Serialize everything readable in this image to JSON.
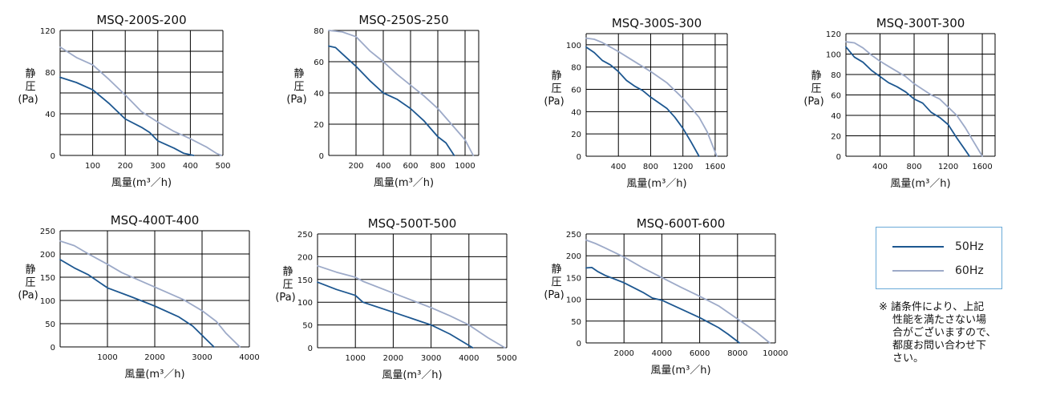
{
  "colors": {
    "hz50": "#1d5790",
    "hz60": "#9daac8",
    "grid": "#000000",
    "legend_border": "#6aaad8"
  },
  "legend": [
    {
      "label": "50Hz",
      "color": "#1d5790"
    },
    {
      "label": "60Hz",
      "color": "#9daac8"
    }
  ],
  "note_lines": [
    "※ 諸条件により、上記",
    "性能を満たさない場",
    "合がございますので、",
    "都度お問い合わせ下",
    "さい。"
  ],
  "chart_data": [
    {
      "type": "line",
      "title": "MSQ-200S-200",
      "ylabel": [
        "静",
        "圧",
        "(Pa)"
      ],
      "xlabel": "風量(m³／h)",
      "xlim": [
        0,
        500
      ],
      "ylim": [
        0,
        120
      ],
      "x_grid": [
        0,
        100,
        200,
        300,
        400,
        500
      ],
      "x_ticks": [
        100,
        200,
        300,
        400,
        500
      ],
      "y_grid": [
        0,
        20,
        40,
        60,
        80,
        100,
        120
      ],
      "y_ticks": [
        0,
        40,
        80,
        120
      ],
      "series": [
        {
          "name": "50Hz",
          "points": [
            [
              0,
              75
            ],
            [
              50,
              70
            ],
            [
              100,
              63
            ],
            [
              150,
              50
            ],
            [
              200,
              35
            ],
            [
              250,
              27
            ],
            [
              275,
              22
            ],
            [
              300,
              14
            ],
            [
              350,
              7
            ],
            [
              380,
              2
            ],
            [
              410,
              0
            ]
          ]
        },
        {
          "name": "60Hz",
          "points": [
            [
              0,
              104
            ],
            [
              50,
              94
            ],
            [
              100,
              87
            ],
            [
              150,
              73
            ],
            [
              200,
              58
            ],
            [
              250,
              42
            ],
            [
              300,
              32
            ],
            [
              350,
              23
            ],
            [
              400,
              16
            ],
            [
              450,
              8
            ],
            [
              480,
              2
            ],
            [
              495,
              0
            ]
          ]
        }
      ]
    },
    {
      "type": "line",
      "title": "MSQ-250S-250",
      "ylabel": [
        "静",
        "圧",
        "(Pa)"
      ],
      "xlabel": "風量(m³／h)",
      "xlim": [
        0,
        1100
      ],
      "ylim": [
        0,
        80
      ],
      "x_grid": [
        0,
        200,
        400,
        600,
        800,
        1000,
        1100
      ],
      "x_ticks": [
        200,
        400,
        600,
        800,
        1000
      ],
      "y_grid": [
        0,
        20,
        40,
        60,
        80
      ],
      "y_ticks": [
        0,
        20,
        40,
        60,
        80
      ],
      "series": [
        {
          "name": "50Hz",
          "points": [
            [
              0,
              70
            ],
            [
              50,
              69
            ],
            [
              100,
              65
            ],
            [
              200,
              57
            ],
            [
              300,
              48
            ],
            [
              400,
              40
            ],
            [
              500,
              36
            ],
            [
              600,
              30
            ],
            [
              700,
              22
            ],
            [
              800,
              12
            ],
            [
              860,
              8
            ],
            [
              920,
              0
            ]
          ]
        },
        {
          "name": "60Hz",
          "points": [
            [
              0,
              80
            ],
            [
              100,
              79
            ],
            [
              200,
              76
            ],
            [
              300,
              67
            ],
            [
              400,
              60
            ],
            [
              500,
              52
            ],
            [
              600,
              45
            ],
            [
              700,
              38
            ],
            [
              800,
              30
            ],
            [
              900,
              20
            ],
            [
              1000,
              10
            ],
            [
              1060,
              0
            ]
          ]
        }
      ]
    },
    {
      "type": "line",
      "title": "MSQ-300S-300",
      "ylabel": [
        "静",
        "圧",
        "(Pa)"
      ],
      "xlabel": "風量(m³／h)",
      "xlim": [
        0,
        1750
      ],
      "ylim": [
        0,
        110
      ],
      "x_grid": [
        0,
        400,
        800,
        1200,
        1600,
        1750
      ],
      "x_ticks": [
        400,
        800,
        1200,
        1600
      ],
      "y_grid": [
        0,
        20,
        40,
        60,
        80,
        100,
        110
      ],
      "y_ticks": [
        0,
        20,
        40,
        60,
        80,
        100
      ],
      "series": [
        {
          "name": "50Hz",
          "points": [
            [
              0,
              98
            ],
            [
              100,
              93
            ],
            [
              200,
              86
            ],
            [
              300,
              82
            ],
            [
              400,
              76
            ],
            [
              500,
              68
            ],
            [
              600,
              63
            ],
            [
              700,
              59
            ],
            [
              800,
              53
            ],
            [
              1000,
              43
            ],
            [
              1100,
              35
            ],
            [
              1200,
              25
            ],
            [
              1300,
              13
            ],
            [
              1400,
              0
            ]
          ]
        },
        {
          "name": "60Hz",
          "points": [
            [
              0,
              106
            ],
            [
              100,
              105
            ],
            [
              200,
              102
            ],
            [
              300,
              98
            ],
            [
              400,
              94
            ],
            [
              600,
              85
            ],
            [
              800,
              76
            ],
            [
              1000,
              66
            ],
            [
              1200,
              52
            ],
            [
              1400,
              35
            ],
            [
              1500,
              22
            ],
            [
              1620,
              0
            ]
          ]
        }
      ]
    },
    {
      "type": "line",
      "title": "MSQ-300T-300",
      "ylabel": [
        "静",
        "圧",
        "(Pa)"
      ],
      "xlabel": "風量(m³／h)",
      "xlim": [
        0,
        1750
      ],
      "ylim": [
        0,
        120
      ],
      "x_grid": [
        0,
        400,
        800,
        1200,
        1600,
        1750
      ],
      "x_ticks": [
        400,
        800,
        1200,
        1600
      ],
      "y_grid": [
        0,
        20,
        40,
        60,
        80,
        100,
        120
      ],
      "y_ticks": [
        0,
        20,
        40,
        60,
        80,
        100,
        120
      ],
      "series": [
        {
          "name": "50Hz",
          "points": [
            [
              0,
              107
            ],
            [
              100,
              97
            ],
            [
              200,
              92
            ],
            [
              300,
              84
            ],
            [
              400,
              78
            ],
            [
              500,
              72
            ],
            [
              600,
              68
            ],
            [
              700,
              63
            ],
            [
              800,
              56
            ],
            [
              900,
              52
            ],
            [
              1000,
              43
            ],
            [
              1100,
              38
            ],
            [
              1200,
              31
            ],
            [
              1300,
              18
            ],
            [
              1400,
              6
            ],
            [
              1450,
              0
            ]
          ]
        },
        {
          "name": "60Hz",
          "points": [
            [
              0,
              112
            ],
            [
              100,
              111
            ],
            [
              200,
              106
            ],
            [
              300,
              99
            ],
            [
              400,
              93
            ],
            [
              500,
              88
            ],
            [
              600,
              83
            ],
            [
              700,
              78
            ],
            [
              800,
              71
            ],
            [
              1000,
              60
            ],
            [
              1100,
              56
            ],
            [
              1200,
              48
            ],
            [
              1300,
              40
            ],
            [
              1400,
              28
            ],
            [
              1500,
              14
            ],
            [
              1600,
              0
            ]
          ]
        }
      ]
    },
    {
      "type": "line",
      "title": "MSQ-400T-400",
      "ylabel": [
        "静",
        "圧",
        "(Pa)"
      ],
      "xlabel": "風量(m³／h)",
      "xlim": [
        0,
        4000
      ],
      "ylim": [
        0,
        250
      ],
      "x_grid": [
        0,
        1000,
        2000,
        3000,
        4000
      ],
      "x_ticks": [
        1000,
        2000,
        3000,
        4000
      ],
      "y_grid": [
        0,
        50,
        100,
        150,
        200,
        250
      ],
      "y_ticks": [
        0,
        50,
        100,
        150,
        200,
        250
      ],
      "series": [
        {
          "name": "50Hz",
          "points": [
            [
              0,
              188
            ],
            [
              300,
              170
            ],
            [
              600,
              155
            ],
            [
              1000,
              127
            ],
            [
              1500,
              108
            ],
            [
              2000,
              88
            ],
            [
              2500,
              65
            ],
            [
              2800,
              45
            ],
            [
              3000,
              25
            ],
            [
              3250,
              0
            ]
          ]
        },
        {
          "name": "60Hz",
          "points": [
            [
              0,
              228
            ],
            [
              300,
              218
            ],
            [
              600,
              200
            ],
            [
              1000,
              178
            ],
            [
              1300,
              160
            ],
            [
              1700,
              142
            ],
            [
              2200,
              120
            ],
            [
              2600,
              102
            ],
            [
              3000,
              78
            ],
            [
              3300,
              55
            ],
            [
              3500,
              30
            ],
            [
              3800,
              0
            ]
          ]
        }
      ]
    },
    {
      "type": "line",
      "title": "MSQ-500T-500",
      "ylabel": [
        "静",
        "圧",
        "(Pa)"
      ],
      "xlabel": "風量(m³／h)",
      "xlim": [
        0,
        5000
      ],
      "ylim": [
        0,
        250
      ],
      "x_grid": [
        0,
        1000,
        2000,
        3000,
        4000,
        5000
      ],
      "x_ticks": [
        1000,
        2000,
        3000,
        4000,
        5000
      ],
      "y_grid": [
        0,
        50,
        100,
        150,
        200,
        250
      ],
      "y_ticks": [
        0,
        50,
        100,
        150,
        200,
        250
      ],
      "series": [
        {
          "name": "50Hz",
          "points": [
            [
              0,
              144
            ],
            [
              500,
              128
            ],
            [
              1000,
              115
            ],
            [
              1200,
              100
            ],
            [
              2000,
              78
            ],
            [
              2500,
              64
            ],
            [
              3000,
              50
            ],
            [
              3500,
              30
            ],
            [
              3800,
              15
            ],
            [
              4100,
              0
            ]
          ]
        },
        {
          "name": "60Hz",
          "points": [
            [
              0,
              180
            ],
            [
              500,
              166
            ],
            [
              1000,
              155
            ],
            [
              1200,
              146
            ],
            [
              2000,
              120
            ],
            [
              2500,
              104
            ],
            [
              3000,
              88
            ],
            [
              3500,
              70
            ],
            [
              4000,
              50
            ],
            [
              4500,
              22
            ],
            [
              4950,
              0
            ]
          ]
        }
      ]
    },
    {
      "type": "line",
      "title": "MSQ-600T-600",
      "ylabel": [
        "静",
        "圧",
        "(Pa)"
      ],
      "xlabel": "風量(m³／h)",
      "xlim": [
        0,
        10000
      ],
      "ylim": [
        0,
        250
      ],
      "x_grid": [
        0,
        2000,
        4000,
        6000,
        8000,
        10000
      ],
      "x_ticks": [
        2000,
        4000,
        6000,
        8000,
        10000
      ],
      "y_grid": [
        0,
        50,
        100,
        150,
        200,
        250
      ],
      "y_ticks": [
        0,
        50,
        100,
        150,
        200,
        250
      ],
      "series": [
        {
          "name": "50Hz",
          "points": [
            [
              0,
              172
            ],
            [
              300,
              173
            ],
            [
              600,
              164
            ],
            [
              1000,
              155
            ],
            [
              2000,
              138
            ],
            [
              3000,
              116
            ],
            [
              3500,
              103
            ],
            [
              4000,
              98
            ],
            [
              5000,
              78
            ],
            [
              6000,
              58
            ],
            [
              7000,
              35
            ],
            [
              7500,
              20
            ],
            [
              8100,
              0
            ]
          ]
        },
        {
          "name": "60Hz",
          "points": [
            [
              0,
              236
            ],
            [
              500,
              228
            ],
            [
              1000,
              218
            ],
            [
              2000,
              197
            ],
            [
              3000,
              172
            ],
            [
              4000,
              150
            ],
            [
              5000,
              128
            ],
            [
              6000,
              107
            ],
            [
              7000,
              85
            ],
            [
              8000,
              55
            ],
            [
              9000,
              25
            ],
            [
              9700,
              0
            ]
          ]
        }
      ]
    }
  ]
}
